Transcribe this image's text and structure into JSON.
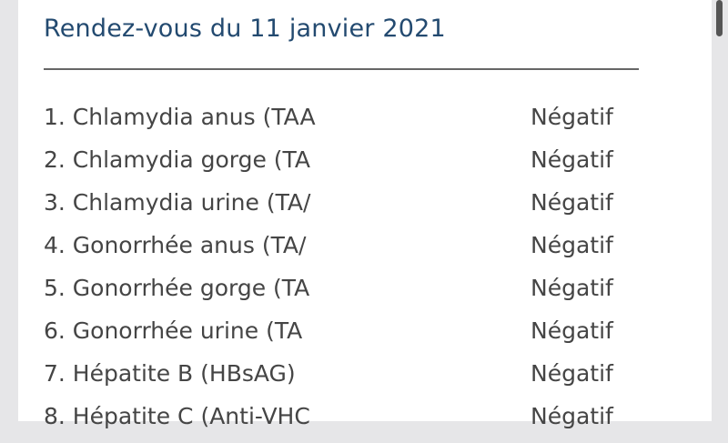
{
  "title": "Rendez-vous du 11 janvier 2021",
  "results": [
    {
      "name": "1. Chlamydia anus (TAA",
      "result": "Négatif"
    },
    {
      "name": "2. Chlamydia gorge (TA",
      "result": "Négatif"
    },
    {
      "name": "3. Chlamydia urine (TA/",
      "result": "Négatif"
    },
    {
      "name": "4. Gonorrhée anus (TA/",
      "result": "Négatif"
    },
    {
      "name": "5. Gonorrhée gorge (TA",
      "result": "Négatif"
    },
    {
      "name": "6. Gonorrhée urine (TA",
      "result": "Négatif"
    },
    {
      "name": "7. Hépatite B (HBsAG)",
      "result": "Négatif"
    },
    {
      "name": "8. Hépatite C (Anti-VHC",
      "result": "Négatif"
    }
  ]
}
